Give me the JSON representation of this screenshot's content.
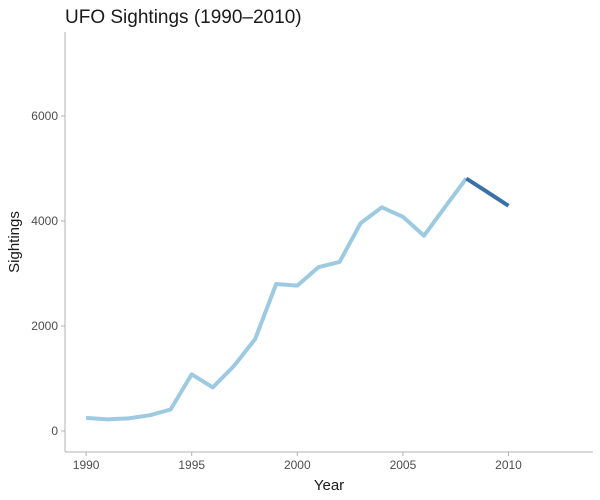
{
  "chart_data": {
    "type": "line",
    "title": "UFO Sightings (1990–2010)",
    "xlabel": "Year",
    "ylabel": "Sightings",
    "xlim": [
      1989,
      2014
    ],
    "ylim": [
      -400,
      7600
    ],
    "x_ticks": [
      1990,
      1995,
      2000,
      2005,
      2010
    ],
    "y_ticks": [
      0,
      2000,
      4000,
      6000
    ],
    "grid": false,
    "legend": "none",
    "series": [
      {
        "color": "#9ecae1",
        "x": [
          1990,
          1991,
          1992,
          1993,
          1994,
          1995,
          1996,
          1997,
          1998,
          1999,
          2000,
          2001,
          2002,
          2003,
          2004,
          2005,
          2006,
          2007,
          2008
        ],
        "y": [
          250,
          220,
          240,
          300,
          410,
          1080,
          830,
          1240,
          1750,
          2800,
          2770,
          3120,
          3220,
          3960,
          4260,
          4080,
          3720,
          4270,
          4810
        ]
      },
      {
        "color": "#3a6fa8",
        "x": [
          2008,
          2009,
          2010
        ],
        "y": [
          4810,
          4550,
          4290
        ]
      }
    ]
  }
}
